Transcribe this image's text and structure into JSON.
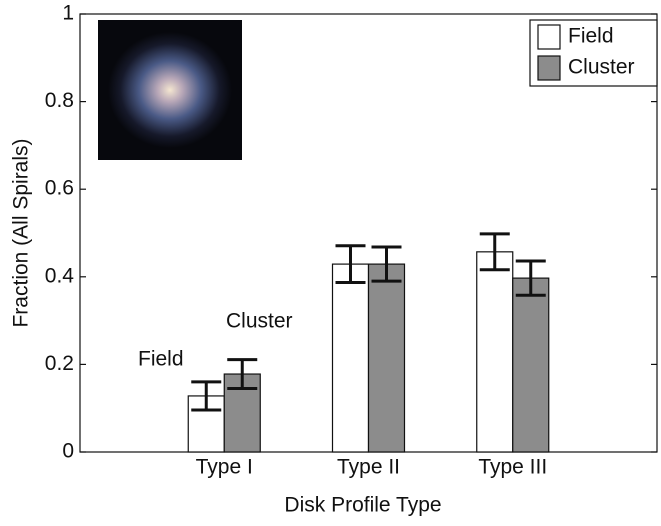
{
  "chart_data": {
    "type": "bar",
    "x_label": "Disk Profile Type",
    "y_label": "Fraction (All Spirals)",
    "categories": [
      "Type I",
      "Type II",
      "Type III"
    ],
    "series": [
      {
        "name": "Field",
        "color": "#ffffff",
        "values": [
          0.128,
          0.429,
          0.457
        ],
        "errors": [
          0.032,
          0.042,
          0.041
        ]
      },
      {
        "name": "Cluster",
        "color": "#8c8c8c",
        "values": [
          0.178,
          0.429,
          0.397
        ],
        "errors": [
          0.033,
          0.039,
          0.039
        ]
      }
    ],
    "xlim": [
      0,
      4
    ],
    "ylim": [
      0,
      1
    ],
    "yticks": [
      0,
      0.2,
      0.4,
      0.6,
      0.8,
      1
    ],
    "legend": "upper right",
    "annotations": [
      "Field",
      "Cluster"
    ],
    "grid": false
  }
}
